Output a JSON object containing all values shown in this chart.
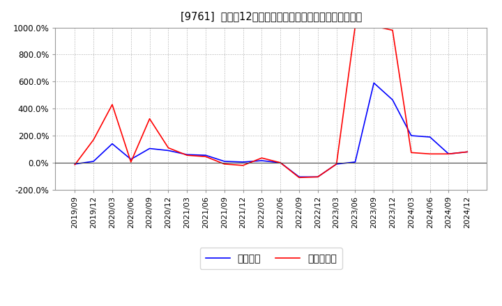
{
  "title": "[9761]  利益の12か月移動合計の対前年同期増減率の推移",
  "legend_labels": [
    "経常利益",
    "当期純利益"
  ],
  "line_colors": [
    "#0000FF",
    "#FF0000"
  ],
  "ylim": [
    -200,
    1000
  ],
  "yticks": [
    -200,
    0,
    200,
    400,
    600,
    800,
    1000
  ],
  "background_color": "#FFFFFF",
  "grid_color": "#AAAAAA",
  "dates": [
    "2019/09",
    "2019/12",
    "2020/03",
    "2020/06",
    "2020/09",
    "2020/12",
    "2021/03",
    "2021/06",
    "2021/09",
    "2021/12",
    "2022/03",
    "2022/06",
    "2022/09",
    "2022/12",
    "2023/03",
    "2023/06",
    "2023/09",
    "2023/12",
    "2024/03",
    "2024/06",
    "2024/09",
    "2024/12"
  ],
  "keijo_rieki": [
    -10,
    10,
    140,
    25,
    105,
    90,
    60,
    55,
    10,
    5,
    15,
    0,
    -105,
    -105,
    -10,
    5,
    590,
    465,
    200,
    190,
    65,
    80
  ],
  "touki_jun_rieki": [
    -15,
    170,
    430,
    5,
    325,
    110,
    55,
    45,
    -10,
    -20,
    35,
    0,
    -110,
    -105,
    -10,
    1010,
    1010,
    980,
    75,
    65,
    65,
    80
  ]
}
